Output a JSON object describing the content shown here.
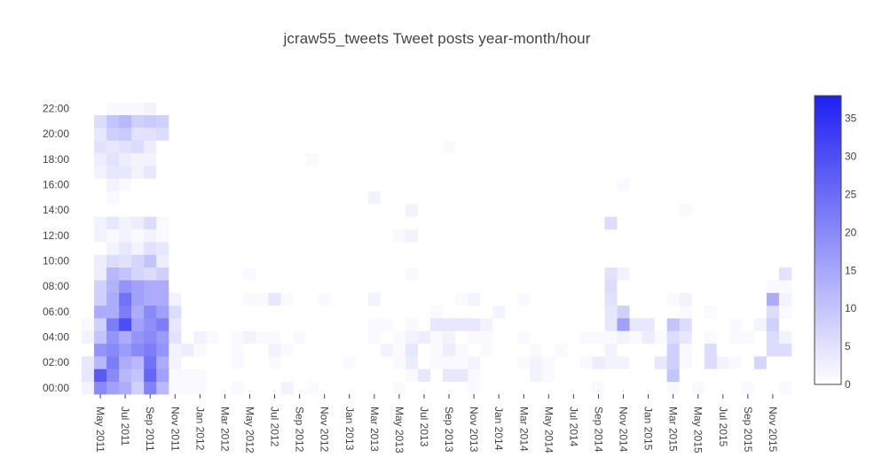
{
  "chart_data": {
    "type": "heatmap",
    "title": "jcraw55_tweets Tweet posts year-month/hour",
    "xlabel": "",
    "ylabel": "",
    "x_months": [
      "2011-04",
      "2011-05",
      "2011-06",
      "2011-07",
      "2011-08",
      "2011-09",
      "2011-10",
      "2011-11",
      "2011-12",
      "2012-01",
      "2012-02",
      "2012-03",
      "2012-04",
      "2012-05",
      "2012-06",
      "2012-07",
      "2012-08",
      "2012-09",
      "2012-10",
      "2012-11",
      "2012-12",
      "2013-01",
      "2013-02",
      "2013-03",
      "2013-04",
      "2013-05",
      "2013-06",
      "2013-07",
      "2013-08",
      "2013-09",
      "2013-10",
      "2013-11",
      "2013-12",
      "2014-01",
      "2014-02",
      "2014-03",
      "2014-04",
      "2014-05",
      "2014-06",
      "2014-07",
      "2014-08",
      "2014-09",
      "2014-10",
      "2014-11",
      "2014-12",
      "2015-01",
      "2015-02",
      "2015-03",
      "2015-04",
      "2015-05",
      "2015-06",
      "2015-07",
      "2015-08",
      "2015-09",
      "2015-10",
      "2015-11",
      "2015-12"
    ],
    "x_tick_labels": [
      "May 2011",
      "Jul 2011",
      "Sep 2011",
      "Nov 2011",
      "Jan 2012",
      "Mar 2012",
      "May 2012",
      "Jul 2012",
      "Sep 2012",
      "Nov 2012",
      "Jan 2013",
      "Mar 2013",
      "May 2013",
      "Jul 2013",
      "Sep 2013",
      "Nov 2013",
      "Jan 2014",
      "Mar 2014",
      "May 2014",
      "Jul 2014",
      "Sep 2014",
      "Nov 2014",
      "Jan 2015",
      "Mar 2015",
      "May 2015",
      "Jul 2015",
      "Sep 2015",
      "Nov 2015"
    ],
    "y_hours": [
      0,
      1,
      2,
      3,
      4,
      5,
      6,
      7,
      8,
      9,
      10,
      11,
      12,
      13,
      14,
      15,
      16,
      17,
      18,
      19,
      20,
      21,
      22,
      23
    ],
    "y_tick_labels": [
      "00:00",
      "02:00",
      "04:00",
      "06:00",
      "08:00",
      "10:00",
      "12:00",
      "14:00",
      "16:00",
      "18:00",
      "20:00",
      "22:00"
    ],
    "y_tick_values": [
      0,
      2,
      4,
      6,
      8,
      10,
      12,
      14,
      16,
      18,
      20,
      22
    ],
    "colorscale": [
      "#ffffff",
      "#1f1ff2"
    ],
    "zmin": 0,
    "zmax": 38,
    "colorbar_ticks": [
      0,
      5,
      10,
      15,
      20,
      25,
      30,
      35
    ],
    "grid": false,
    "z": [
      [
        2,
        20,
        16,
        14,
        8,
        21,
        12,
        1,
        1,
        1,
        0,
        0,
        1,
        0,
        0,
        0,
        2,
        0,
        1,
        0,
        0,
        0,
        0,
        0,
        0,
        1,
        0,
        0,
        0,
        0,
        0,
        1,
        0,
        0,
        0,
        0,
        0,
        0,
        0,
        0,
        0,
        1,
        0,
        0,
        0,
        0,
        0,
        1,
        0,
        1,
        0,
        0,
        0,
        1,
        0,
        0,
        1
      ],
      [
        4,
        28,
        20,
        12,
        10,
        26,
        16,
        1,
        1,
        1,
        0,
        0,
        0,
        0,
        0,
        0,
        0,
        0,
        0,
        0,
        0,
        0,
        0,
        0,
        0,
        0,
        1,
        4,
        0,
        4,
        4,
        1,
        0,
        0,
        0,
        0,
        2,
        1,
        0,
        0,
        0,
        0,
        0,
        0,
        0,
        0,
        0,
        10,
        0,
        0,
        0,
        0,
        0,
        0,
        0,
        0,
        0
      ],
      [
        4,
        12,
        22,
        14,
        12,
        24,
        14,
        2,
        0,
        0,
        0,
        0,
        1,
        0,
        0,
        1,
        0,
        0,
        0,
        0,
        0,
        1,
        0,
        0,
        0,
        1,
        3,
        0,
        1,
        1,
        1,
        2,
        0,
        0,
        0,
        1,
        2,
        1,
        0,
        0,
        1,
        3,
        2,
        2,
        0,
        0,
        4,
        8,
        1,
        0,
        6,
        2,
        1,
        0,
        7,
        0,
        0
      ],
      [
        0,
        18,
        20,
        17,
        20,
        22,
        18,
        2,
        3,
        1,
        0,
        0,
        1,
        0,
        0,
        2,
        1,
        0,
        0,
        0,
        0,
        0,
        0,
        0,
        2,
        1,
        4,
        0,
        1,
        3,
        1,
        0,
        1,
        0,
        0,
        0,
        1,
        0,
        1,
        0,
        0,
        0,
        2,
        0,
        0,
        0,
        0,
        8,
        1,
        0,
        6,
        0,
        0,
        0,
        0,
        6,
        6
      ],
      [
        2,
        10,
        18,
        14,
        18,
        20,
        17,
        5,
        0,
        2,
        1,
        0,
        1,
        2,
        1,
        1,
        0,
        1,
        0,
        0,
        0,
        0,
        0,
        1,
        0,
        1,
        2,
        3,
        1,
        2,
        0,
        1,
        1,
        0,
        0,
        1,
        0,
        0,
        0,
        0,
        1,
        1,
        1,
        2,
        1,
        3,
        1,
        6,
        4,
        0,
        1,
        0,
        1,
        1,
        0,
        6,
        2
      ],
      [
        1,
        8,
        22,
        30,
        16,
        19,
        22,
        4,
        0,
        0,
        0,
        0,
        0,
        0,
        0,
        0,
        0,
        0,
        0,
        0,
        0,
        0,
        0,
        1,
        1,
        0,
        1,
        0,
        4,
        4,
        4,
        4,
        2,
        0,
        0,
        0,
        0,
        0,
        0,
        0,
        0,
        0,
        4,
        16,
        4,
        4,
        0,
        10,
        6,
        0,
        0,
        0,
        1,
        0,
        2,
        8,
        0
      ],
      [
        0,
        14,
        14,
        22,
        14,
        20,
        16,
        6,
        0,
        0,
        0,
        0,
        0,
        0,
        0,
        0,
        0,
        0,
        0,
        0,
        0,
        0,
        0,
        0,
        0,
        0,
        0,
        0,
        1,
        0,
        0,
        0,
        0,
        2,
        0,
        0,
        0,
        0,
        0,
        0,
        0,
        0,
        4,
        8,
        0,
        0,
        0,
        0,
        1,
        0,
        1,
        0,
        0,
        0,
        0,
        6,
        1
      ],
      [
        0,
        8,
        14,
        24,
        16,
        14,
        14,
        2,
        0,
        0,
        0,
        0,
        0,
        1,
        1,
        4,
        1,
        0,
        0,
        1,
        0,
        0,
        0,
        2,
        0,
        0,
        0,
        0,
        0,
        0,
        1,
        2,
        0,
        0,
        0,
        1,
        0,
        0,
        0,
        0,
        0,
        0,
        5,
        0,
        0,
        0,
        0,
        1,
        2,
        0,
        0,
        0,
        0,
        0,
        0,
        14,
        2
      ],
      [
        0,
        8,
        13,
        18,
        16,
        14,
        14,
        0,
        0,
        0,
        0,
        0,
        0,
        0,
        0,
        0,
        0,
        0,
        0,
        0,
        0,
        0,
        0,
        0,
        0,
        0,
        0,
        0,
        0,
        0,
        0,
        0,
        0,
        0,
        0,
        0,
        0,
        0,
        0,
        0,
        0,
        0,
        6,
        0,
        0,
        0,
        0,
        0,
        0,
        0,
        0,
        0,
        0,
        0,
        0,
        1,
        1
      ],
      [
        0,
        3,
        12,
        10,
        7,
        6,
        8,
        0,
        0,
        0,
        0,
        0,
        0,
        1,
        0,
        0,
        0,
        0,
        0,
        0,
        0,
        0,
        0,
        0,
        0,
        0,
        1,
        0,
        0,
        0,
        0,
        0,
        0,
        0,
        0,
        0,
        0,
        0,
        0,
        0,
        0,
        0,
        5,
        2,
        0,
        0,
        0,
        0,
        0,
        0,
        0,
        0,
        0,
        0,
        0,
        0,
        5
      ],
      [
        0,
        3,
        6,
        5,
        7,
        10,
        3,
        0,
        0,
        0,
        0,
        0,
        0,
        0,
        0,
        0,
        0,
        0,
        0,
        0,
        0,
        0,
        0,
        0,
        0,
        0,
        0,
        0,
        0,
        0,
        0,
        0,
        0,
        0,
        0,
        0,
        0,
        0,
        0,
        0,
        0,
        0,
        0,
        0,
        0,
        0,
        0,
        0,
        0,
        0,
        0,
        0,
        0,
        0,
        0,
        0,
        0
      ],
      [
        0,
        0,
        2,
        4,
        2,
        5,
        4,
        0,
        0,
        0,
        0,
        0,
        0,
        0,
        0,
        0,
        0,
        0,
        0,
        0,
        0,
        0,
        0,
        0,
        0,
        0,
        0,
        0,
        0,
        0,
        0,
        0,
        0,
        0,
        0,
        0,
        0,
        0,
        0,
        0,
        0,
        0,
        0,
        0,
        0,
        0,
        0,
        0,
        0,
        0,
        0,
        0,
        0,
        0,
        0,
        0,
        0
      ],
      [
        0,
        2,
        1,
        2,
        1,
        2,
        1,
        0,
        0,
        0,
        0,
        0,
        0,
        0,
        0,
        0,
        0,
        0,
        0,
        0,
        0,
        0,
        0,
        0,
        0,
        1,
        2,
        0,
        0,
        0,
        0,
        0,
        0,
        0,
        0,
        0,
        0,
        0,
        0,
        0,
        0,
        0,
        0,
        0,
        0,
        0,
        0,
        0,
        0,
        0,
        0,
        0,
        0,
        0,
        0,
        0,
        0
      ],
      [
        0,
        2,
        4,
        2,
        3,
        6,
        1,
        0,
        0,
        0,
        0,
        0,
        0,
        0,
        0,
        0,
        0,
        0,
        0,
        0,
        0,
        0,
        0,
        0,
        0,
        0,
        0,
        0,
        0,
        0,
        0,
        0,
        0,
        0,
        0,
        0,
        0,
        0,
        0,
        0,
        0,
        0,
        6,
        0,
        0,
        0,
        0,
        0,
        0,
        0,
        0,
        0,
        0,
        0,
        0,
        0,
        0
      ],
      [
        0,
        0,
        0,
        0,
        0,
        0,
        0,
        0,
        0,
        0,
        0,
        0,
        0,
        0,
        0,
        0,
        0,
        0,
        0,
        0,
        0,
        0,
        0,
        0,
        0,
        0,
        2,
        0,
        0,
        0,
        0,
        0,
        0,
        0,
        0,
        0,
        0,
        0,
        0,
        0,
        0,
        0,
        0,
        0,
        0,
        0,
        0,
        0,
        1,
        0,
        0,
        0,
        0,
        0,
        0,
        0,
        0
      ],
      [
        0,
        0,
        1,
        0,
        0,
        0,
        0,
        0,
        0,
        0,
        0,
        0,
        0,
        0,
        0,
        0,
        0,
        0,
        0,
        0,
        0,
        0,
        0,
        2,
        0,
        0,
        0,
        0,
        0,
        0,
        0,
        0,
        0,
        0,
        0,
        0,
        0,
        0,
        0,
        0,
        0,
        0,
        0,
        0,
        0,
        0,
        0,
        0,
        0,
        0,
        0,
        0,
        0,
        0,
        0,
        0,
        0
      ],
      [
        0,
        0,
        2,
        1,
        0,
        0,
        0,
        0,
        0,
        0,
        0,
        0,
        0,
        0,
        0,
        0,
        0,
        0,
        0,
        0,
        0,
        0,
        0,
        0,
        0,
        0,
        0,
        0,
        0,
        0,
        0,
        0,
        0,
        0,
        0,
        0,
        0,
        0,
        0,
        0,
        0,
        0,
        0,
        1,
        0,
        0,
        0,
        0,
        0,
        0,
        0,
        0,
        0,
        0,
        0,
        0,
        0
      ],
      [
        0,
        2,
        4,
        4,
        2,
        4,
        0,
        0,
        0,
        0,
        0,
        0,
        0,
        0,
        0,
        0,
        0,
        0,
        0,
        0,
        0,
        0,
        0,
        0,
        0,
        0,
        0,
        0,
        0,
        0,
        0,
        0,
        0,
        0,
        0,
        0,
        0,
        0,
        0,
        0,
        0,
        0,
        0,
        0,
        0,
        0,
        0,
        0,
        0,
        0,
        0,
        0,
        0,
        0,
        0,
        0,
        0
      ],
      [
        0,
        3,
        5,
        3,
        2,
        2,
        0,
        0,
        0,
        0,
        0,
        0,
        0,
        0,
        0,
        0,
        0,
        0,
        1,
        0,
        0,
        0,
        0,
        0,
        0,
        0,
        0,
        0,
        0,
        0,
        0,
        0,
        0,
        0,
        0,
        0,
        0,
        0,
        0,
        0,
        0,
        0,
        0,
        0,
        0,
        0,
        0,
        0,
        0,
        0,
        0,
        0,
        0,
        0,
        0,
        0,
        0
      ],
      [
        0,
        5,
        4,
        5,
        6,
        3,
        0,
        0,
        0,
        0,
        0,
        0,
        0,
        0,
        0,
        0,
        0,
        0,
        0,
        0,
        0,
        0,
        0,
        0,
        0,
        0,
        0,
        0,
        0,
        1,
        0,
        0,
        0,
        0,
        0,
        0,
        0,
        0,
        0,
        0,
        0,
        0,
        0,
        0,
        0,
        0,
        0,
        0,
        0,
        0,
        0,
        0,
        0,
        0,
        0,
        0,
        0
      ],
      [
        0,
        4,
        8,
        9,
        5,
        5,
        6,
        0,
        0,
        0,
        0,
        0,
        0,
        0,
        0,
        0,
        0,
        0,
        0,
        0,
        0,
        0,
        0,
        0,
        0,
        0,
        0,
        0,
        0,
        0,
        0,
        0,
        0,
        0,
        0,
        0,
        0,
        0,
        0,
        0,
        0,
        0,
        0,
        0,
        0,
        0,
        0,
        0,
        0,
        0,
        0,
        0,
        0,
        0,
        0,
        0,
        0
      ],
      [
        0,
        6,
        10,
        12,
        8,
        9,
        8,
        0,
        0,
        0,
        0,
        0,
        0,
        0,
        0,
        0,
        0,
        0,
        0,
        0,
        0,
        0,
        0,
        0,
        0,
        0,
        0,
        0,
        0,
        0,
        0,
        0,
        0,
        0,
        0,
        0,
        0,
        0,
        0,
        0,
        0,
        0,
        0,
        0,
        0,
        0,
        0,
        0,
        0,
        0,
        0,
        0,
        0,
        0,
        0,
        0,
        0
      ],
      [
        0,
        0,
        1,
        1,
        1,
        2,
        0,
        0,
        0,
        0,
        0,
        0,
        0,
        0,
        0,
        0,
        0,
        0,
        0,
        0,
        0,
        0,
        0,
        0,
        0,
        0,
        0,
        0,
        0,
        0,
        0,
        0,
        0,
        0,
        0,
        0,
        0,
        0,
        0,
        0,
        0,
        0,
        0,
        0,
        0,
        0,
        0,
        0,
        0,
        0,
        0,
        0,
        0,
        0,
        0,
        0,
        0
      ],
      [
        0,
        0,
        0,
        0,
        0,
        0,
        0,
        0,
        0,
        0,
        0,
        0,
        0,
        0,
        0,
        0,
        0,
        0,
        0,
        0,
        0,
        0,
        0,
        0,
        0,
        0,
        0,
        0,
        0,
        0,
        0,
        0,
        0,
        0,
        0,
        0,
        0,
        0,
        0,
        0,
        0,
        0,
        0,
        0,
        0,
        0,
        0,
        0,
        0,
        0,
        0,
        0,
        0,
        0,
        0,
        0,
        0
      ]
    ]
  }
}
